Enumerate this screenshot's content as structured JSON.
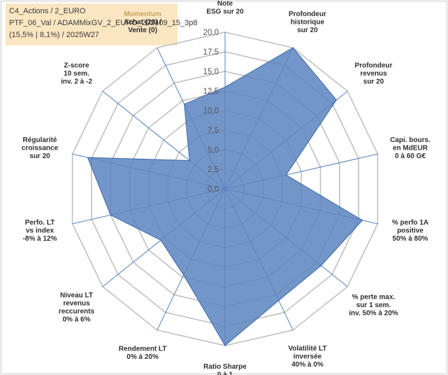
{
  "header": {
    "line1": "C4_Actions / 2_EURO",
    "line2": "PTF_06_Val / ADAMMixGV_2_EURO_202409_15_3p8",
    "line3": "(15,5% | 8,1%) / 2025W27"
  },
  "chart_data": {
    "type": "radar",
    "r_range": [
      0,
      20
    ],
    "tick_values": [
      "0,0",
      "2,5",
      "5,0",
      "7,5",
      "10,0",
      "12,5",
      "15,0",
      "17,5",
      "20,0"
    ],
    "grid": true,
    "categories": [
      "Note ESG sur 20",
      "Profondeur historique sur 20",
      "Profondeur revenus sur 20",
      "Capi. bours. en MdEUR 0 à 60 G€",
      "% perfo 1A positive 50% à 80%",
      "% perte max. sur 1 sem. inv. 50% à 20%",
      "Volatilité LT inversée 40% à 0%",
      "Ratio Sharpe 0 à 1",
      "Rendement LT 0% à 20%",
      "Niveau LT revenus reccurents 0% à 6%",
      "Perfo. LT vs index -8% à 12%",
      "Régularité croissance sur 20",
      "Z-score 10 sem. inv. 2 à -2",
      "Momentum Achat (20) / Vente (0)"
    ],
    "labels": [
      {
        "main": [
          "Note",
          "ESG sur 20"
        ],
        "sub": ""
      },
      {
        "main": [
          "Profondeur",
          "historique",
          "sur 20"
        ],
        "sub": ""
      },
      {
        "main": [
          "Profondeur",
          "revenus",
          "sur 20"
        ],
        "sub": ""
      },
      {
        "main": [
          "Capi. bours.",
          "en MdEUR",
          "0 à 60 G€"
        ],
        "sub": ""
      },
      {
        "main": [
          "% perfo 1A",
          "positive",
          "50% à 80%"
        ],
        "sub": ""
      },
      {
        "main": [
          "% perte max.",
          "sur 1 sem.",
          "inv. 50% à 20%"
        ],
        "sub": ""
      },
      {
        "main": [
          "Volatilité LT",
          "inversée",
          "40% à 0%"
        ],
        "sub": ""
      },
      {
        "main": [
          "Ratio Sharpe",
          "0 à 1"
        ],
        "sub": ""
      },
      {
        "main": [
          "Rendement LT",
          "0% à 20%"
        ],
        "sub": ""
      },
      {
        "main": [
          "Niveau LT",
          "revenus",
          "reccurents",
          "0% à 6%"
        ],
        "sub": ""
      },
      {
        "main": [
          "Perfo. LT",
          "vs index",
          "-8% à 12%"
        ],
        "sub": ""
      },
      {
        "main": [
          "Régularité",
          "croissance",
          "sur 20"
        ],
        "sub": ""
      },
      {
        "main": [
          "Z-score",
          "10 sem.",
          "inv. 2 à -2"
        ],
        "sub": ""
      },
      {
        "main": [
          "Achat (20) /",
          "Vente (0)"
        ],
        "sub": "Momentum"
      }
    ],
    "series": [
      {
        "values": [
          13,
          20,
          18.2,
          8.0,
          18.0,
          15.7,
          15.8,
          20,
          12.2,
          10.5,
          15.0,
          18.0,
          5.8,
          12.0
        ],
        "color": "#5b84bf",
        "stroke": "#3d66a8"
      }
    ],
    "grid_color": "#c0c0c0",
    "axis_color": "#4f7fc2"
  }
}
